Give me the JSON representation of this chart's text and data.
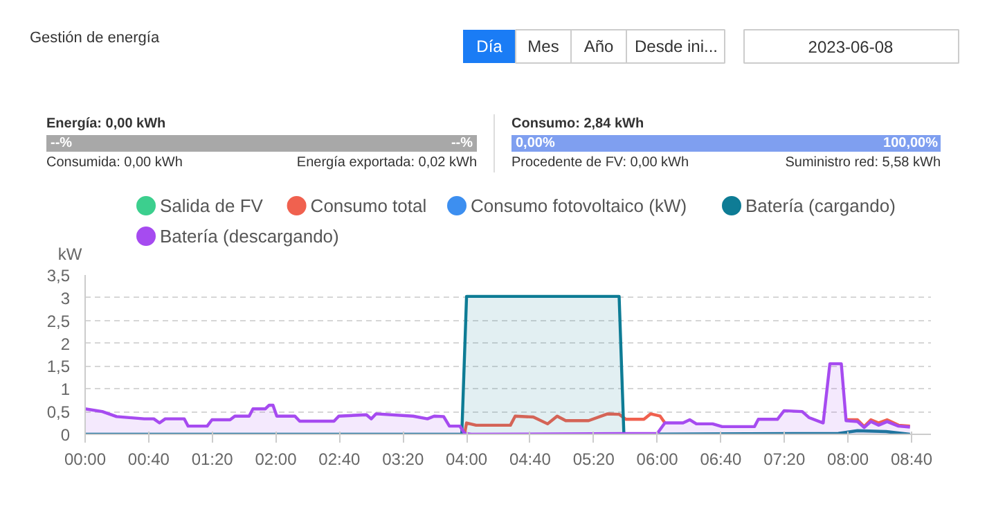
{
  "chart_data": {
    "type": "line",
    "title": "Gestión de energía",
    "ylabel": "kW",
    "annotations": [
      "Día",
      "Mes",
      "Año",
      "Desde ini...",
      "2023-06-08",
      "Energía: 0,00 kWh",
      "--%",
      "--%",
      "Consumida: 0,00 kWh",
      "Energía exportada: 0,02 kWh",
      "Consumo: 2,84 kWh",
      "0,00%",
      "100,00%",
      "Procedente de FV: 0,00 kWh",
      "Suministro red: 5,58 kWh"
    ],
    "xlim": [
      0,
      8.87
    ],
    "ylim": [
      0,
      3.5
    ],
    "xticks": [
      {
        "value": 0,
        "label": "00:00"
      },
      {
        "value": 0.6667,
        "label": "00:40"
      },
      {
        "value": 1.3333,
        "label": "01:20"
      },
      {
        "value": 2,
        "label": "02:00"
      },
      {
        "value": 2.6667,
        "label": "02:40"
      },
      {
        "value": 3.3333,
        "label": "03:20"
      },
      {
        "value": 4,
        "label": "04:00"
      },
      {
        "value": 4.6667,
        "label": "04:40"
      },
      {
        "value": 5.3333,
        "label": "05:20"
      },
      {
        "value": 6,
        "label": "06:00"
      },
      {
        "value": 6.6667,
        "label": "06:40"
      },
      {
        "value": 7.3333,
        "label": "07:20"
      },
      {
        "value": 8,
        "label": "08:00"
      },
      {
        "value": 8.6667,
        "label": "08:40"
      }
    ],
    "yticks": [
      0,
      {
        "value": 0.5,
        "label": "0,5"
      },
      1,
      {
        "value": 1.5,
        "label": "1,5"
      },
      2,
      {
        "value": 2.5,
        "label": "2,5"
      },
      3,
      {
        "value": 3.5,
        "label": "3,5"
      }
    ],
    "grid": "y",
    "legend": "top",
    "series": [
      {
        "name": "Salida de FV",
        "color": "#3ccf8e"
      },
      {
        "name": "Consumo total",
        "color": "#f0614f",
        "x": [
          3.98,
          4.0,
          4.1,
          4.37,
          4.46,
          4.51,
          4.7,
          4.85,
          4.95,
          5.04,
          5.28,
          5.48,
          5.6,
          5.67,
          5.86,
          5.93,
          6.03,
          6.08,
          6.1,
          7.98,
          8.1,
          8.17,
          8.24,
          8.32,
          8.41,
          8.53,
          8.65
        ],
        "values": [
          0.02,
          0.25,
          0.2,
          0.2,
          0.2,
          0.4,
          0.38,
          0.23,
          0.4,
          0.3,
          0.3,
          0.45,
          0.44,
          0.33,
          0.33,
          0.45,
          0.4,
          0.25,
          null,
          0.32,
          0.32,
          0.17,
          0.32,
          0.25,
          0.32,
          0.2,
          0.18
        ]
      },
      {
        "name": "Consumo fotovoltaico (kW)",
        "color": "#3d8ff0"
      },
      {
        "name": "Batería (cargando)",
        "color": "#0e7c95",
        "type": "area",
        "x": [
          0,
          3.95,
          4.0,
          5.6,
          5.65,
          7.9,
          8.1,
          8.4,
          8.65
        ],
        "values": [
          0,
          0,
          3.03,
          3.03,
          0,
          0.02,
          0.08,
          0.06,
          0
        ]
      },
      {
        "name": "Batería (descargando)",
        "color": "#a64bf0",
        "type": "area",
        "x": [
          0,
          0.18,
          0.33,
          0.62,
          0.72,
          0.78,
          0.84,
          1.04,
          1.08,
          1.28,
          1.33,
          1.52,
          1.57,
          1.72,
          1.76,
          1.89,
          1.93,
          1.97,
          2.01,
          2.2,
          2.25,
          2.61,
          2.66,
          2.95,
          3.0,
          3.05,
          3.44,
          3.59,
          3.66,
          3.76,
          3.82,
          3.93,
          3.98,
          4.05,
          6.0,
          6.08,
          6.27,
          6.34,
          6.41,
          6.58,
          6.68,
          7.02,
          7.06,
          7.26,
          7.33,
          7.52,
          7.59,
          7.74,
          7.81,
          7.93,
          7.98,
          8.1,
          8.17,
          8.24,
          8.32,
          8.41,
          8.53,
          8.65
        ],
        "values": [
          0.56,
          0.5,
          0.39,
          0.34,
          0.34,
          0.25,
          0.34,
          0.34,
          0.18,
          0.18,
          0.32,
          0.32,
          0.4,
          0.4,
          0.56,
          0.56,
          0.64,
          0.64,
          0.4,
          0.4,
          0.29,
          0.29,
          0.4,
          0.43,
          0.34,
          0.45,
          0.4,
          0.34,
          0.4,
          0.39,
          0.18,
          0.18,
          0.02,
          0,
          0.02,
          0.25,
          0.25,
          0.32,
          0.23,
          0.23,
          0.17,
          0.17,
          0.33,
          0.33,
          0.52,
          0.5,
          0.37,
          0.25,
          1.55,
          1.55,
          0.3,
          0.28,
          0.15,
          0.28,
          0.2,
          0.28,
          0.18,
          0.16
        ]
      }
    ]
  }
}
